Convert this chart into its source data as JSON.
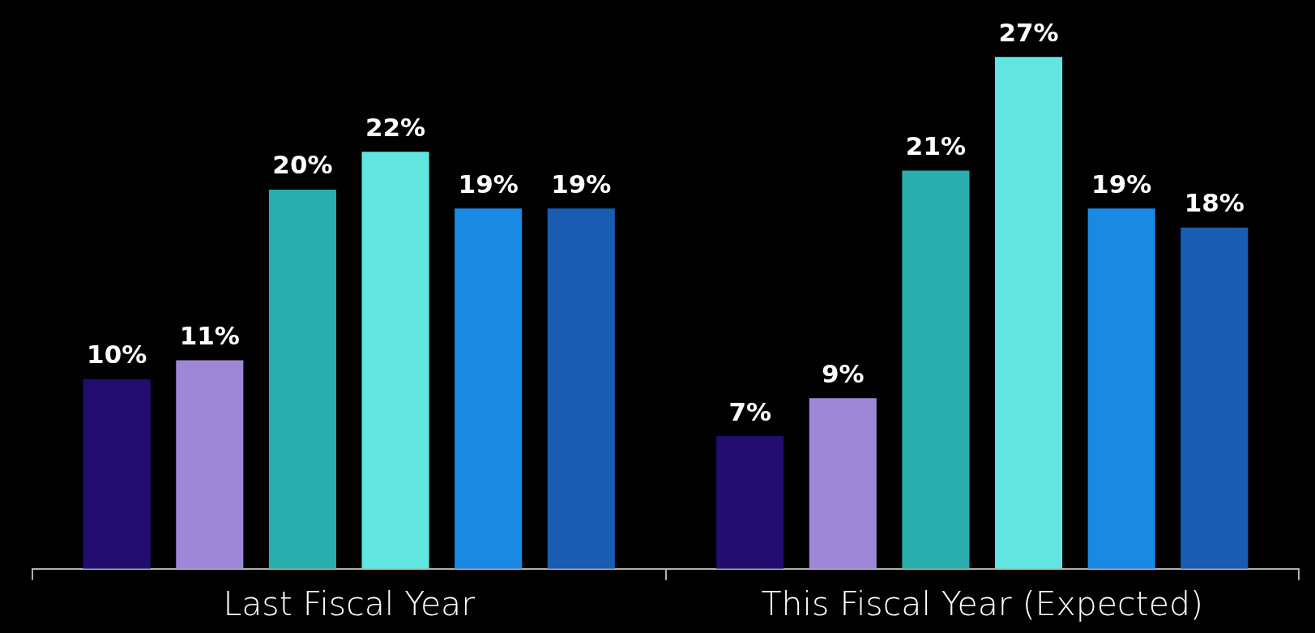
{
  "chart_data": {
    "type": "bar",
    "categories": [
      "Last Fiscal Year",
      "This Fiscal Year (Expected)"
    ],
    "series": [
      {
        "color": "#230c70",
        "values": [
          10,
          7
        ],
        "value_labels": [
          "10%",
          "7%"
        ]
      },
      {
        "color": "#9d87d6",
        "values": [
          11,
          9
        ],
        "value_labels": [
          "11%",
          "9%"
        ]
      },
      {
        "color": "#29adad",
        "values": [
          20,
          21
        ],
        "value_labels": [
          "20%",
          "21%"
        ]
      },
      {
        "color": "#62e5e0",
        "values": [
          22,
          27
        ],
        "value_labels": [
          "22%",
          "27%"
        ]
      },
      {
        "color": "#1a89e3",
        "values": [
          19,
          19
        ],
        "value_labels": [
          "19%",
          "19%"
        ]
      },
      {
        "color": "#185cb4",
        "values": [
          19,
          18
        ],
        "value_labels": [
          "19%",
          "18%"
        ]
      }
    ],
    "legend": false,
    "tick_labels": "x"
  }
}
